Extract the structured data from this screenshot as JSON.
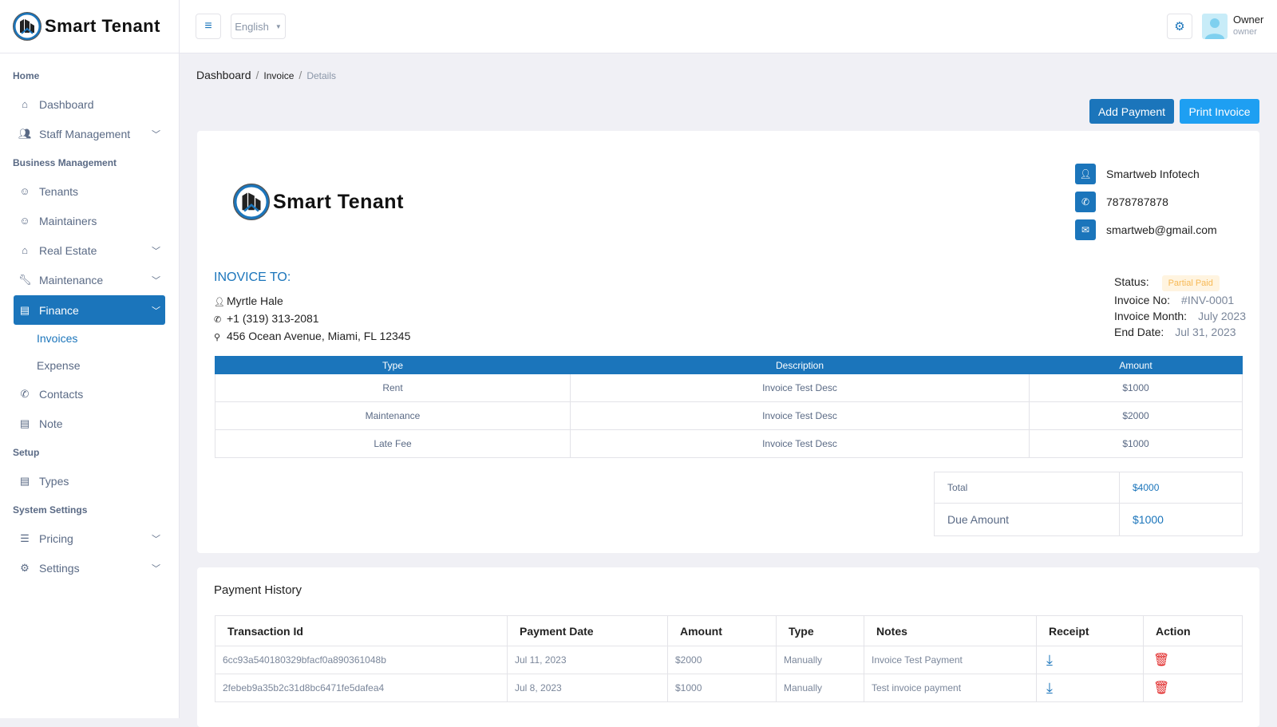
{
  "brand": {
    "name": "Smart Tenant"
  },
  "topbar": {
    "language": "English",
    "user_name": "Owner",
    "user_role": "owner"
  },
  "sidebar": {
    "sections": [
      "Home",
      "Business Management",
      "Setup",
      "System Settings"
    ],
    "items": {
      "dashboard": "Dashboard",
      "staff": "Staff Management",
      "tenants": "Tenants",
      "maintainers": "Maintainers",
      "real_estate": "Real Estate",
      "maintenance": "Maintenance",
      "finance": "Finance",
      "invoices": "Invoices",
      "expense": "Expense",
      "contacts": "Contacts",
      "note": "Note",
      "types": "Types",
      "pricing": "Pricing",
      "settings": "Settings"
    }
  },
  "breadcrumb": [
    "Dashboard",
    "Invoice",
    "Details"
  ],
  "actions": {
    "add_payment": "Add Payment",
    "print_invoice": "Print Invoice"
  },
  "company": {
    "name": "Smartweb Infotech",
    "phone": "7878787878",
    "email": "smartweb@gmail.com"
  },
  "invoice_to": {
    "heading": "INOVICE TO:",
    "name": "Myrtle Hale",
    "phone": "+1 (319) 313-2081",
    "address": "456 Ocean Avenue, Miami, FL 12345"
  },
  "meta": {
    "status_label": "Status:",
    "status": "Partial Paid",
    "no_label": "Invoice No:",
    "no": "#INV-0001",
    "month_label": "Invoice Month:",
    "month": "July 2023",
    "end_label": "End Date:",
    "end": "Jul 31, 2023"
  },
  "items_table": {
    "headers": [
      "Type",
      "Description",
      "Amount"
    ],
    "rows": [
      [
        "Rent",
        "Invoice Test Desc",
        "$1000"
      ],
      [
        "Maintenance",
        "Invoice Test Desc",
        "$2000"
      ],
      [
        "Late Fee",
        "Invoice Test Desc",
        "$1000"
      ]
    ]
  },
  "totals": {
    "total_label": "Total",
    "total": "$4000",
    "due_label": "Due Amount",
    "due": "$1000"
  },
  "payment_history": {
    "title": "Payment History",
    "headers": [
      "Transaction Id",
      "Payment Date",
      "Amount",
      "Type",
      "Notes",
      "Receipt",
      "Action"
    ],
    "rows": [
      [
        "6cc93a540180329bfacf0a890361048b",
        "Jul 11, 2023",
        "$2000",
        "Manually",
        "Invoice Test Payment"
      ],
      [
        "2febeb9a35b2c31d8bc6471fe5dafea4",
        "Jul 8, 2023",
        "$1000",
        "Manually",
        "Test invoice payment"
      ]
    ]
  },
  "colors": {
    "primary": "#1b75bb",
    "accent": "#1e9ff2",
    "status_bg": "#fff4e0",
    "status_fg": "#f7b955",
    "danger": "#e02424"
  }
}
